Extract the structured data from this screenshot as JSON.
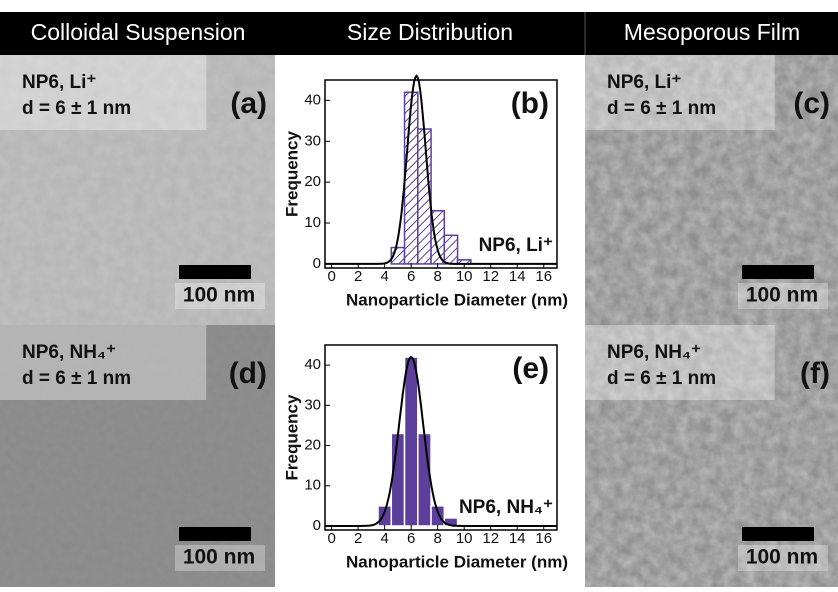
{
  "header": {
    "columns": [
      "Colloidal Suspension",
      "Size Distribution",
      "Mesoporous Film"
    ]
  },
  "panels": [
    {
      "sample": "NP6, Li⁺",
      "size": "d = 6 ± 1 nm",
      "letter": "(a)",
      "scale": "100 nm"
    },
    {
      "sample": "NP6, NH₄⁺",
      "size": "d = 6 ± 1 nm",
      "letter": "(d)",
      "scale": "100 nm"
    },
    {
      "sample": "NP6, Li⁺",
      "size": "d = 6 ± 1 nm",
      "letter": "(c)",
      "scale": "100 nm"
    },
    {
      "sample": "NP6, NH₄⁺",
      "size": "d = 6 ± 1 nm",
      "letter": "(f)",
      "scale": "100 nm"
    }
  ],
  "chart_data": [
    {
      "type": "histogram",
      "letter": "(b)",
      "annotation": "NP6, Li⁺",
      "xlabel": "Nanoparticle Diameter (nm)",
      "ylabel": "Frequency",
      "bins": [
        4.5,
        5.5,
        6.5,
        7.5,
        8.5,
        9.5,
        10.5
      ],
      "counts": [
        4,
        42,
        33,
        13,
        7,
        1
      ],
      "color": "#5b3f9a",
      "style": "hatched",
      "fit": {
        "amplitude": 46,
        "mean": 6.4,
        "sigma": 0.7
      },
      "xlim": [
        -0.5,
        17
      ],
      "xticks": [
        0,
        2,
        4,
        6,
        8,
        10,
        12,
        14,
        16
      ],
      "ylim": [
        -1,
        45
      ],
      "yticks": [
        0,
        10,
        20,
        30,
        40
      ]
    },
    {
      "type": "histogram",
      "letter": "(e)",
      "annotation": "NP6, NH₄⁺",
      "xlabel": "Nanoparticle Diameter (nm)",
      "ylabel": "Frequency",
      "bins": [
        3.5,
        4.5,
        5.5,
        6.5,
        7.5,
        8.5,
        9.5
      ],
      "counts": [
        5,
        23,
        42,
        23,
        5,
        2
      ],
      "color": "#5b3f9a",
      "style": "solid",
      "fit": {
        "amplitude": 42,
        "mean": 6.0,
        "sigma": 0.9
      },
      "xlim": [
        -0.5,
        17
      ],
      "xticks": [
        0,
        2,
        4,
        6,
        8,
        10,
        12,
        14,
        16
      ],
      "ylim": [
        -1,
        45
      ],
      "yticks": [
        0,
        10,
        20,
        30,
        40
      ]
    }
  ]
}
